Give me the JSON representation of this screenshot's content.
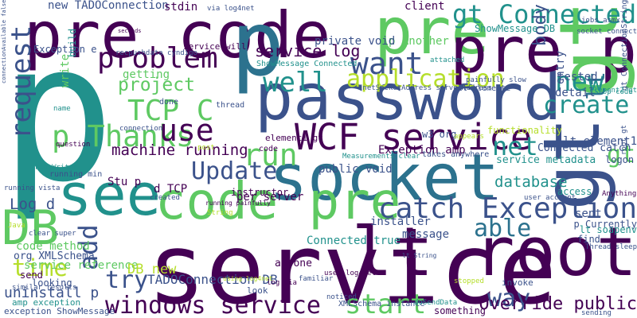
{
  "palette": [
    "#440154",
    "#3b528b",
    "#21918c",
    "#2c728e",
    "#5ec962",
    "#b5de2b",
    "#fde725"
  ],
  "words": [
    {
      "text": "p",
      "c": 2
    },
    {
      "text": "service",
      "c": 0
    },
    {
      "text": "password",
      "c": 1
    },
    {
      "text": "pre code",
      "c": 0
    },
    {
      "text": "socket",
      "c": 3
    },
    {
      "text": "pre",
      "c": 4
    },
    {
      "text": "p",
      "c": 3
    },
    {
      "text": "pre p",
      "c": 0
    },
    {
      "text": "gt",
      "c": 4
    },
    {
      "text": "code pre",
      "c": 4
    },
    {
      "text": "see",
      "c": 2
    },
    {
      "text": "DB",
      "c": 4
    },
    {
      "text": "gt",
      "c": 1
    },
    {
      "text": "WCF service",
      "c": 0
    },
    {
      "text": "catch Exception",
      "c": 1
    },
    {
      "text": "lt root",
      "c": 0
    },
    {
      "text": "gt Connected",
      "c": 2
    },
    {
      "text": "request",
      "c": 1
    },
    {
      "text": "p Thanks",
      "c": 4
    },
    {
      "text": "TCP C",
      "c": 4
    },
    {
      "text": "want",
      "c": 1
    },
    {
      "text": "use",
      "c": 0
    },
    {
      "text": "run",
      "c": 4
    },
    {
      "text": "Update",
      "c": 1
    },
    {
      "text": "create",
      "c": 2
    },
    {
      "text": "problem",
      "c": 0
    },
    {
      "text": "application",
      "c": 5
    },
    {
      "text": "windows service",
      "c": 0
    },
    {
      "text": "start",
      "c": 4
    },
    {
      "text": "well",
      "c": 2
    },
    {
      "text": "able",
      "c": 3
    },
    {
      "text": "net",
      "c": 2
    },
    {
      "text": "new",
      "c": 2
    },
    {
      "text": "way",
      "c": 1
    },
    {
      "text": "try",
      "c": 1
    },
    {
      "text": "time",
      "c": 5
    },
    {
      "text": "add",
      "c": 1
    },
    {
      "text": "body",
      "c": 1
    },
    {
      "text": "gt",
      "c": 4
    },
    {
      "text": "lt",
      "c": 3
    },
    {
      "text": "Override public",
      "c": 0
    },
    {
      "text": "project",
      "c": 4
    },
    {
      "text": "service log",
      "c": 0
    },
    {
      "text": "database",
      "c": 2
    },
    {
      "text": "new TADOConnection",
      "c": 1
    },
    {
      "text": "Log d",
      "c": 1
    },
    {
      "text": "uninstall p",
      "c": 1
    },
    {
      "text": "machine running",
      "c": 0
    },
    {
      "text": "getting",
      "c": 4
    },
    {
      "text": "Exception e",
      "c": 1
    },
    {
      "text": "TADOConnection DB",
      "c": 1
    },
    {
      "text": "Connected true",
      "c": 2
    },
    {
      "text": "code method",
      "c": 4
    },
    {
      "text": "service reference",
      "c": 4
    },
    {
      "text": "per server",
      "c": 0
    },
    {
      "text": "message",
      "c": 1
    },
    {
      "text": "installer",
      "c": 1
    },
    {
      "text": "DB new",
      "c": 5
    },
    {
      "text": "ShowMessage DB",
      "c": 2
    },
    {
      "text": "p Another",
      "c": 4
    },
    {
      "text": "public void",
      "c": 1
    },
    {
      "text": "stdin",
      "c": 0
    },
    {
      "text": "client",
      "c": 0
    },
    {
      "text": "tested",
      "c": 1
    },
    {
      "text": "detail",
      "c": 1
    },
    {
      "text": "entry",
      "c": 1
    },
    {
      "text": "sent",
      "c": 1
    },
    {
      "text": "find",
      "c": 1
    },
    {
      "text": "private void",
      "c": 1
    },
    {
      "text": "d TCP",
      "c": 0
    },
    {
      "text": "Stu p",
      "c": 0
    },
    {
      "text": "lt element1",
      "c": 1
    },
    {
      "text": "lt element2",
      "c": 1
    },
    {
      "text": "Exception amp",
      "c": 0
    },
    {
      "text": "service metadata",
      "c": 2
    },
    {
      "text": "Connected catch",
      "c": 1
    },
    {
      "text": "w3 org",
      "c": 1
    },
    {
      "text": "org XMLSchema",
      "c": 1
    },
    {
      "text": "amp exception",
      "c": 2
    },
    {
      "text": "exception ShowMessage",
      "c": 1
    },
    {
      "text": "something",
      "c": 0
    },
    {
      "text": "anyone",
      "c": 0
    },
    {
      "text": "look",
      "c": 1
    },
    {
      "text": "invoke",
      "c": 1
    },
    {
      "text": "logon",
      "c": 1
    },
    {
      "text": "access",
      "c": 2
    },
    {
      "text": "instructor",
      "c": 0
    },
    {
      "text": "p Currently",
      "c": 1
    },
    {
      "text": "lt soapenv",
      "c": 2
    },
    {
      "text": "gt ConnectionString",
      "c": 1
    },
    {
      "text": "running vista",
      "c": 1
    },
    {
      "text": "Java",
      "c": 5
    },
    {
      "text": "similar results",
      "c": 1
    },
    {
      "text": "looking",
      "c": 1
    },
    {
      "text": "send",
      "c": 0
    },
    {
      "text": "write",
      "c": 4
    },
    {
      "text": "build",
      "c": 2
    },
    {
      "text": "thread",
      "c": 1
    },
    {
      "text": "done",
      "c": 1
    },
    {
      "text": "question",
      "c": 0
    },
    {
      "text": "running min",
      "c": 1
    },
    {
      "text": "functionality",
      "c": 5
    },
    {
      "text": "element1 gt",
      "c": 0
    },
    {
      "text": "code",
      "c": 0
    },
    {
      "text": "ShowMessage Connected",
      "c": 2
    },
    {
      "text": "InetSocketAddress serverAddress",
      "c": 1
    },
    {
      "text": "takes anywhere",
      "c": 1
    },
    {
      "text": "Measurements clear",
      "c": 2
    },
    {
      "text": "service will",
      "c": 0
    },
    {
      "text": "post",
      "c": 5
    },
    {
      "text": "PrintWriter",
      "c": 2
    },
    {
      "text": "XMLSchema instance",
      "c": 1
    },
    {
      "text": "log via",
      "c": 0
    },
    {
      "text": "String",
      "c": 5
    },
    {
      "text": "familiar",
      "c": 1
    },
    {
      "text": "user account",
      "c": 1
    },
    {
      "text": "Thread sleep",
      "c": 1
    },
    {
      "text": "Anything",
      "c": 0
    },
    {
      "text": "root gt",
      "c": 1
    },
    {
      "text": "element2 gt",
      "c": 2
    },
    {
      "text": "created",
      "c": 1
    },
    {
      "text": "doSendData",
      "c": 2
    },
    {
      "text": "noticed",
      "c": 1
    },
    {
      "text": "stopped",
      "c": 5
    },
    {
      "text": "jobs asmx",
      "c": 1
    },
    {
      "text": "socket connect",
      "c": 1
    },
    {
      "text": "connectionAvailable false",
      "c": 1
    },
    {
      "text": "name",
      "c": 2
    },
    {
      "text": "attached",
      "c": 2
    },
    {
      "text": "painfully slow",
      "c": 1
    },
    {
      "text": "running painfully",
      "c": 0
    },
    {
      "text": "connection",
      "c": 1
    },
    {
      "text": "Stop code",
      "c": 2
    },
    {
      "text": "appears",
      "c": 5
    },
    {
      "text": "sending",
      "c": 1
    },
    {
      "text": "clear super",
      "c": 1
    },
    {
      "text": "seconds",
      "c": 0
    },
    {
      "text": "via log4net",
      "c": 1
    },
    {
      "text": "using log4net",
      "c": 5
    },
    {
      "text": "uses log4net",
      "c": 0
    },
    {
      "text": "lt String",
      "c": 1
    },
    {
      "text": "recpushdata cyndigo",
      "c": 1
    }
  ]
}
